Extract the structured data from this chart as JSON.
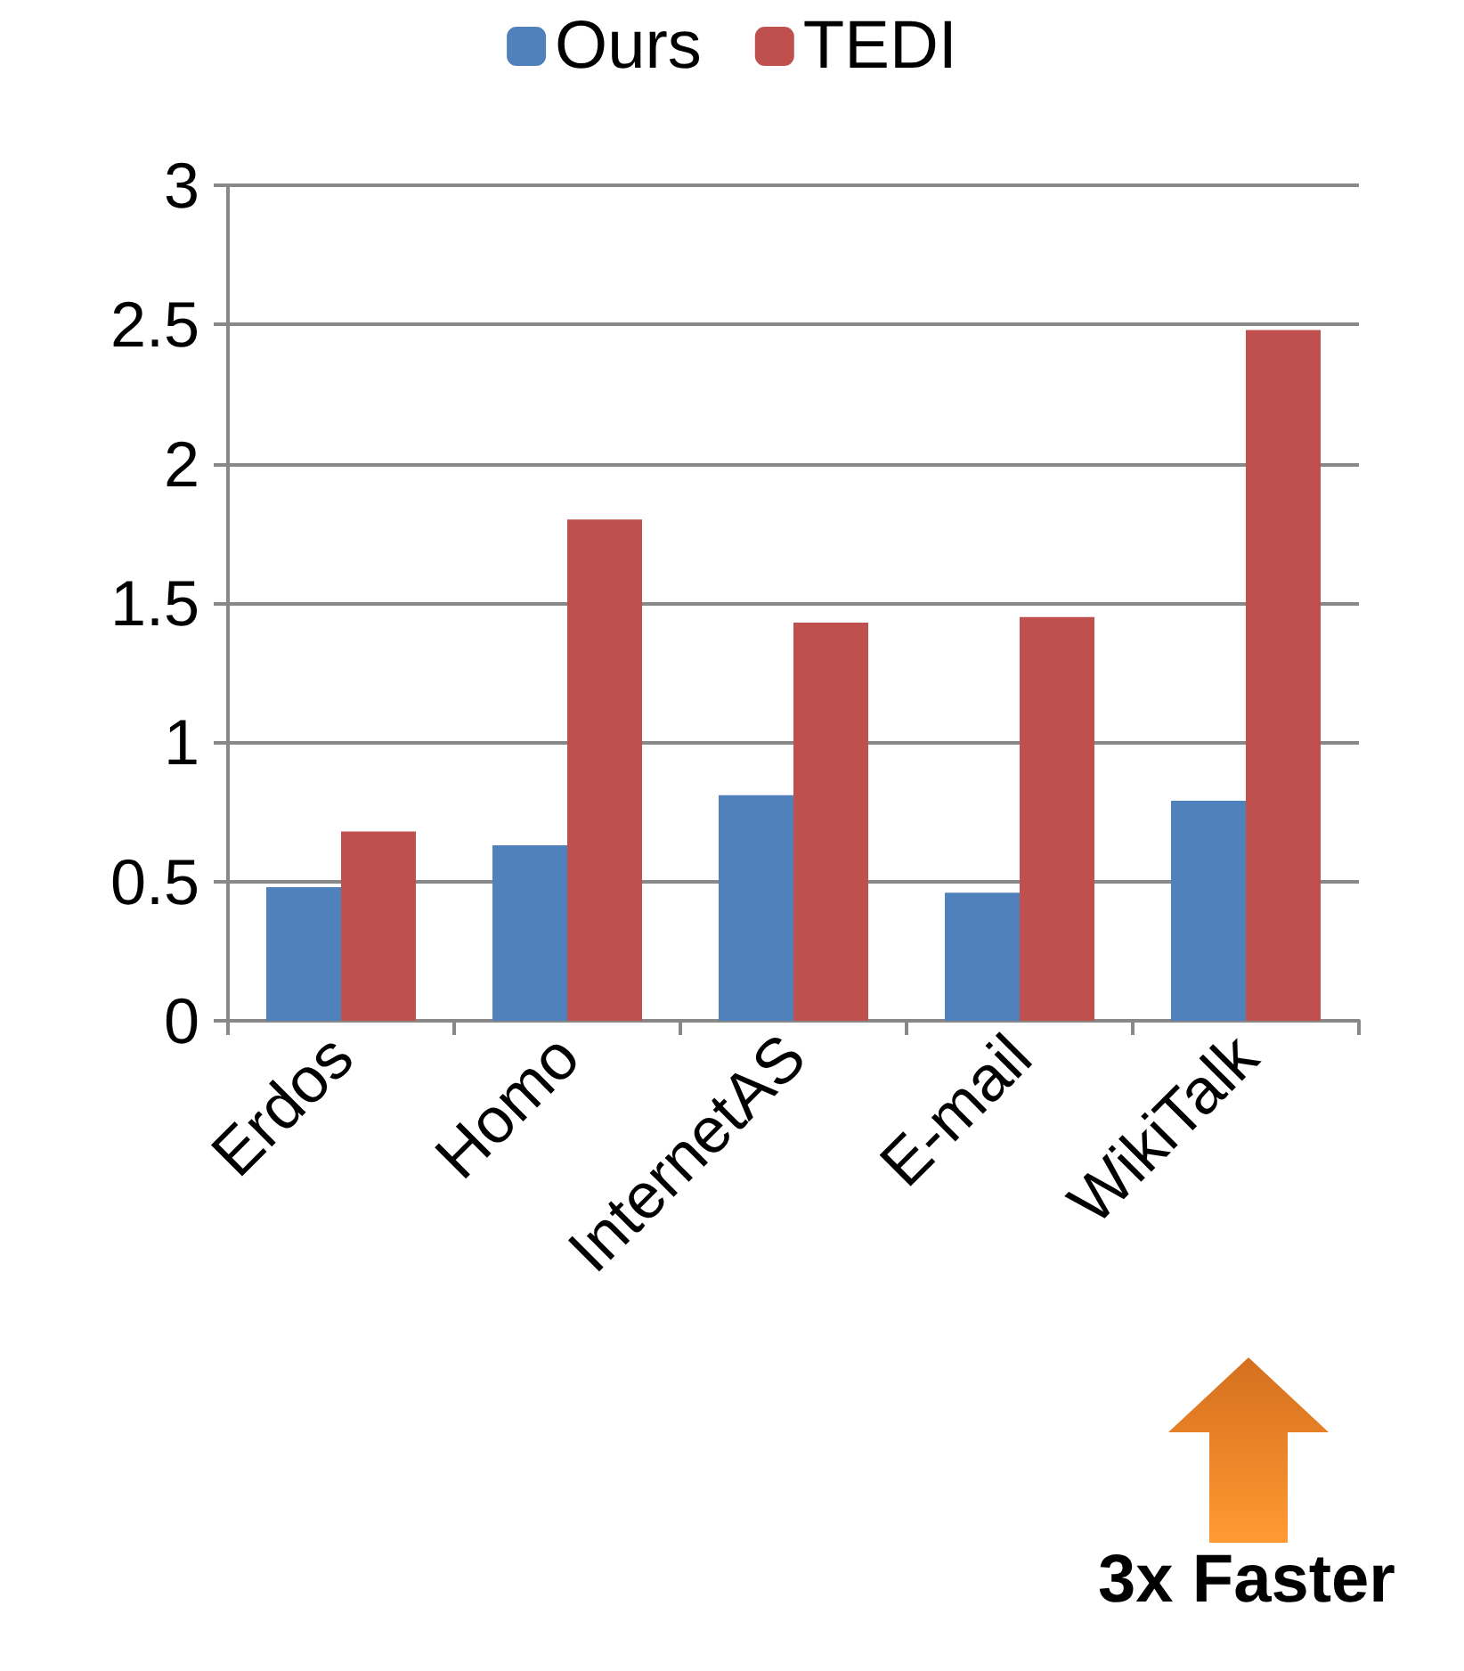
{
  "chart_data": {
    "type": "bar",
    "categories": [
      "Erdos",
      "Homo",
      "InternetAS",
      "E-mail",
      "WikiTalk"
    ],
    "series": [
      {
        "name": "Ours",
        "color": "#4f81bd",
        "values": [
          0.48,
          0.63,
          0.81,
          0.46,
          0.79
        ]
      },
      {
        "name": "TEDI",
        "color": "#c0504d",
        "values": [
          0.68,
          1.8,
          1.43,
          1.45,
          2.48
        ]
      }
    ],
    "ylim": [
      0,
      3
    ],
    "yticks": [
      0,
      0.5,
      1,
      1.5,
      2,
      2.5,
      3
    ],
    "grid": "y",
    "legend": "top",
    "annotations": [
      "3x Faster"
    ]
  }
}
